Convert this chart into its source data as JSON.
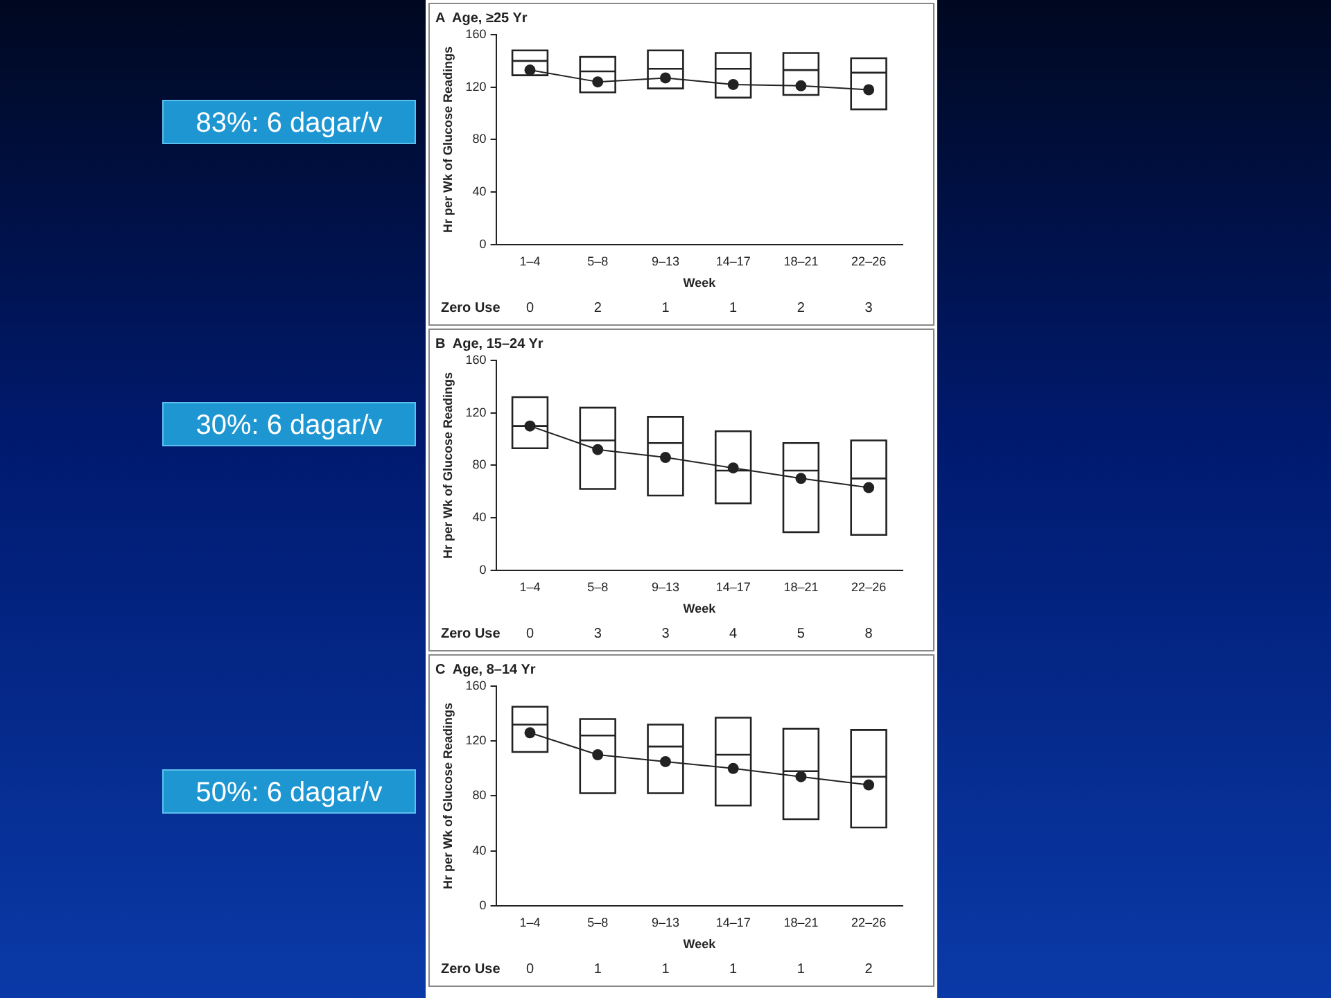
{
  "chart_data": [
    {
      "type": "box",
      "title": "A  Age, ≥25 Yr",
      "xlabel": "Week",
      "ylabel": "Hr per Wk of Glucose Readings",
      "categories": [
        "1–4",
        "5–8",
        "9–13",
        "14–17",
        "18–21",
        "22–26"
      ],
      "ylim": [
        0,
        160
      ],
      "yticks": [
        0,
        40,
        80,
        120,
        160
      ],
      "grid": false,
      "legend": false,
      "series": [
        {
          "color": "#222222",
          "boxes": [
            {
              "low": 129,
              "q1": 129,
              "median": 140,
              "q3": 148,
              "high": 148
            },
            {
              "low": 116,
              "q1": 116,
              "median": 132,
              "q3": 143,
              "high": 143
            },
            {
              "low": 119,
              "q1": 119,
              "median": 134,
              "q3": 148,
              "high": 148
            },
            {
              "low": 112,
              "q1": 112,
              "median": 134,
              "q3": 146,
              "high": 146
            },
            {
              "low": 114,
              "q1": 114,
              "median": 133,
              "q3": 146,
              "high": 146
            },
            {
              "low": 103,
              "q1": 103,
              "median": 131,
              "q3": 142,
              "high": 142
            }
          ]
        },
        {
          "type": "line",
          "color": "#222222",
          "marker": "circle",
          "values": [
            133,
            124,
            127,
            122,
            121,
            118
          ]
        }
      ],
      "annotations": [
        "83%: 6 dagar/v",
        "Zero Use",
        "0",
        "2",
        "1",
        "1",
        "2",
        "3"
      ]
    },
    {
      "type": "box",
      "title": "B  Age, 15–24 Yr",
      "xlabel": "Week",
      "ylabel": "Hr per Wk of Glucose Readings",
      "categories": [
        "1–4",
        "5–8",
        "9–13",
        "14–17",
        "18–21",
        "22–26"
      ],
      "ylim": [
        0,
        160
      ],
      "yticks": [
        0,
        40,
        80,
        120,
        160
      ],
      "grid": false,
      "legend": false,
      "series": [
        {
          "color": "#222222",
          "boxes": [
            {
              "low": 93,
              "q1": 93,
              "median": 110,
              "q3": 132,
              "high": 132
            },
            {
              "low": 62,
              "q1": 62,
              "median": 99,
              "q3": 124,
              "high": 124
            },
            {
              "low": 57,
              "q1": 57,
              "median": 97,
              "q3": 117,
              "high": 117
            },
            {
              "low": 51,
              "q1": 51,
              "median": 76,
              "q3": 106,
              "high": 106
            },
            {
              "low": 29,
              "q1": 29,
              "median": 76,
              "q3": 97,
              "high": 97
            },
            {
              "low": 27,
              "q1": 27,
              "median": 70,
              "q3": 99,
              "high": 99
            }
          ]
        },
        {
          "type": "line",
          "color": "#222222",
          "marker": "circle",
          "values": [
            110,
            92,
            86,
            78,
            70,
            63
          ]
        }
      ],
      "annotations": [
        "30%: 6 dagar/v",
        "Zero Use",
        "0",
        "3",
        "3",
        "4",
        "5",
        "8"
      ]
    },
    {
      "type": "box",
      "title": "C  Age, 8–14 Yr",
      "xlabel": "Week",
      "ylabel": "Hr per Wk of Glucose Readings",
      "categories": [
        "1–4",
        "5–8",
        "9–13",
        "14–17",
        "18–21",
        "22–26"
      ],
      "ylim": [
        0,
        160
      ],
      "yticks": [
        0,
        40,
        80,
        120,
        160
      ],
      "grid": false,
      "legend": false,
      "series": [
        {
          "color": "#222222",
          "boxes": [
            {
              "low": 112,
              "q1": 112,
              "median": 132,
              "q3": 145,
              "high": 145
            },
            {
              "low": 82,
              "q1": 82,
              "median": 124,
              "q3": 136,
              "high": 136
            },
            {
              "low": 82,
              "q1": 82,
              "median": 116,
              "q3": 132,
              "high": 132
            },
            {
              "low": 73,
              "q1": 73,
              "median": 110,
              "q3": 137,
              "high": 137
            },
            {
              "low": 63,
              "q1": 63,
              "median": 98,
              "q3": 129,
              "high": 129
            },
            {
              "low": 57,
              "q1": 57,
              "median": 94,
              "q3": 128,
              "high": 128
            }
          ]
        },
        {
          "type": "line",
          "color": "#222222",
          "marker": "circle",
          "values": [
            126,
            110,
            105,
            100,
            94,
            88
          ]
        }
      ],
      "annotations": [
        "50%: 6 dagar/v",
        "Zero Use",
        "0",
        "1",
        "1",
        "1",
        "1",
        "2"
      ]
    }
  ]
}
